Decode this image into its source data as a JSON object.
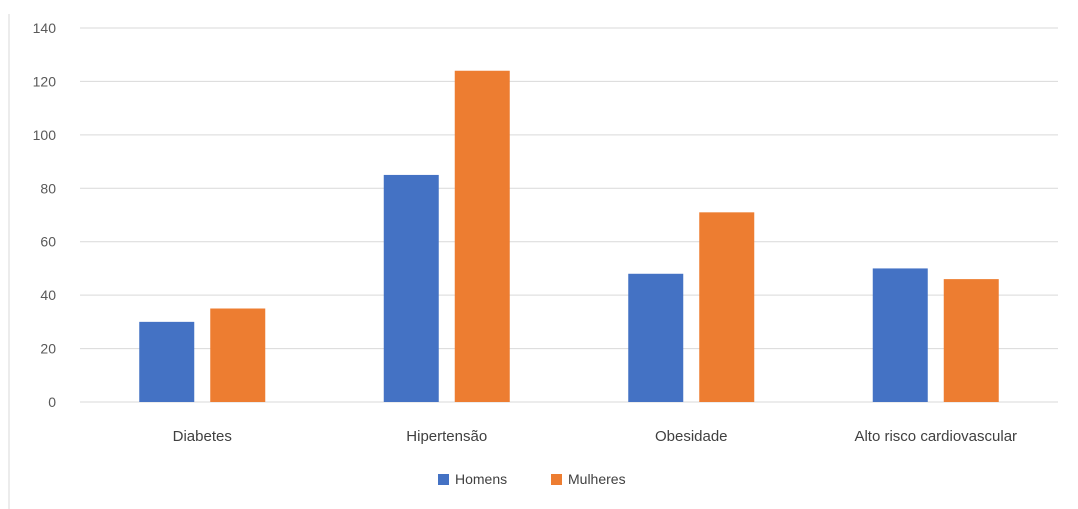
{
  "chart_data": {
    "type": "bar",
    "title": "",
    "xlabel": "",
    "ylabel": "",
    "categories": [
      "Diabetes",
      "Hipertensão",
      "Obesidade",
      "Alto risco cardiovascular"
    ],
    "series": [
      {
        "name": "Homens",
        "values": [
          30,
          85,
          48,
          50
        ],
        "color": "#4472C4"
      },
      {
        "name": "Mulheres",
        "values": [
          35,
          124,
          71,
          46
        ],
        "color": "#ED7D31"
      }
    ],
    "ylim": [
      0,
      140
    ],
    "yticks": [
      "0",
      "20",
      "40",
      "60",
      "80",
      "100",
      "120",
      "140"
    ],
    "grid": true,
    "legend_position": "bottom"
  },
  "colors": {
    "gridline": "#d9d9d9",
    "frame": "#d9d9d9"
  }
}
